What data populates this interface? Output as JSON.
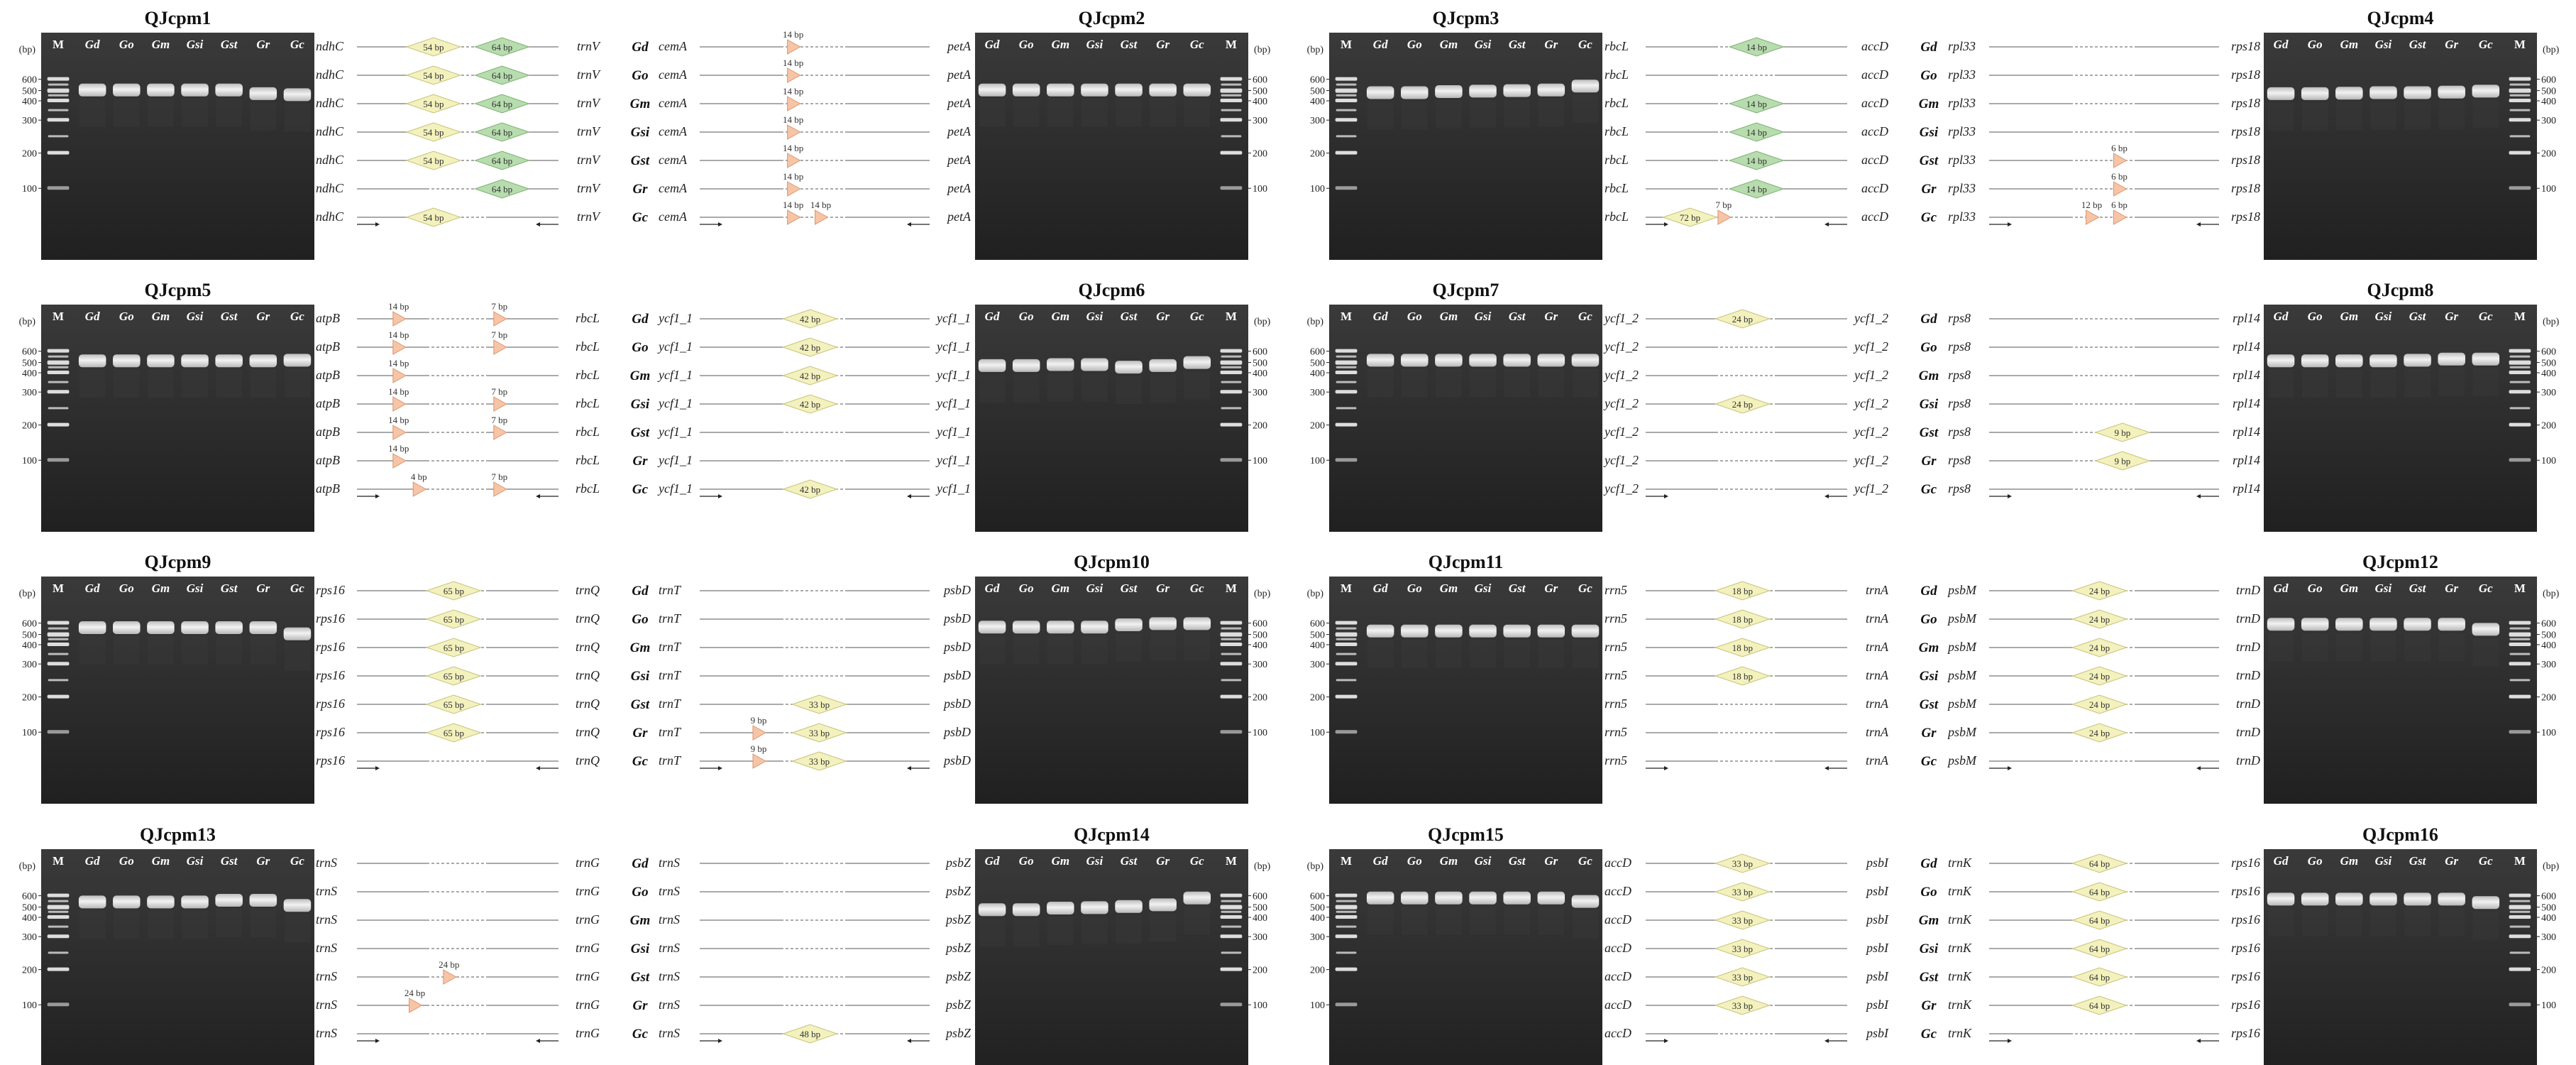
{
  "figure": {
    "size_unit": "(bp)",
    "ladder_label": "M",
    "ladder_values": [
      "600",
      "500",
      "400",
      "300",
      "200",
      "100"
    ],
    "lane_labels": [
      "Gd",
      "Go",
      "Gm",
      "Gsi",
      "Gst",
      "Gr",
      "Gc"
    ],
    "species": [
      "Gd",
      "Go",
      "Gm",
      "Gsi",
      "Gst",
      "Gr",
      "Gc"
    ]
  },
  "panels": [
    {
      "title": "QJcpm1",
      "marker": {
        "left": "ndhC",
        "right": "trnV",
        "features": [
          {
            "type": "diamond",
            "label": "54 bp",
            "color": "yellow",
            "pos": 0.38,
            "present": [
              1,
              1,
              1,
              1,
              1,
              0,
              1
            ]
          },
          {
            "type": "diamond",
            "label": "64 bp",
            "color": "green",
            "pos": 0.72,
            "present": [
              1,
              1,
              1,
              1,
              1,
              1,
              0
            ]
          }
        ]
      }
    },
    {
      "title": "QJcpm2",
      "marker": {
        "left": "cemA",
        "right": "petA",
        "features": [
          {
            "type": "triangle",
            "label": "14 bp",
            "color": "peach",
            "pos": 0.4,
            "present": [
              1,
              1,
              1,
              1,
              1,
              1,
              1
            ]
          },
          {
            "type": "triangle",
            "label": "14 bp",
            "color": "peach",
            "pos": 0.52,
            "present": [
              0,
              0,
              0,
              0,
              0,
              0,
              1
            ]
          }
        ]
      }
    },
    {
      "title": "QJcpm3",
      "marker": {
        "left": "rbcL",
        "right": "accD",
        "features": [
          {
            "type": "diamond",
            "label": "72 bp",
            "color": "yellow",
            "pos": 0.22,
            "present": [
              0,
              0,
              0,
              0,
              0,
              0,
              1
            ]
          },
          {
            "type": "triangle",
            "label": "7 bp",
            "color": "peach",
            "pos": 0.38,
            "present": [
              0,
              0,
              0,
              0,
              0,
              0,
              1
            ]
          },
          {
            "type": "diamond",
            "label": "14 bp",
            "color": "green",
            "pos": 0.55,
            "present": [
              1,
              0,
              1,
              1,
              1,
              1,
              0
            ]
          }
        ]
      }
    },
    {
      "title": "QJcpm4",
      "marker": {
        "left": "rpl33",
        "right": "rps18",
        "features": [
          {
            "type": "triangle",
            "label": "12 bp",
            "color": "peach",
            "pos": 0.44,
            "present": [
              0,
              0,
              0,
              0,
              0,
              0,
              1
            ]
          },
          {
            "type": "triangle",
            "label": "6 bp",
            "color": "peach",
            "pos": 0.56,
            "present": [
              0,
              0,
              0,
              0,
              1,
              1,
              1
            ]
          }
        ]
      }
    },
    {
      "title": "QJcpm5",
      "marker": {
        "left": "atpB",
        "right": "rbcL",
        "features": [
          {
            "type": "triangle",
            "label": "14 bp",
            "color": "peach",
            "pos": 0.2,
            "present": [
              1,
              1,
              1,
              1,
              1,
              1,
              0
            ]
          },
          {
            "type": "triangle",
            "label": "4 bp",
            "color": "peach",
            "pos": 0.3,
            "present": [
              0,
              0,
              0,
              0,
              0,
              0,
              1
            ]
          },
          {
            "type": "triangle",
            "label": "7 bp",
            "color": "peach",
            "pos": 0.7,
            "present": [
              1,
              1,
              0,
              1,
              1,
              0,
              1
            ]
          }
        ]
      }
    },
    {
      "title": "QJcpm6",
      "marker": {
        "left": "ycf1_1",
        "right": "ycf1_1",
        "features": [
          {
            "type": "diamond",
            "label": "42 bp",
            "color": "yellow",
            "pos": 0.48,
            "present": [
              1,
              1,
              1,
              1,
              0,
              0,
              1
            ]
          }
        ]
      }
    },
    {
      "title": "QJcpm7",
      "marker": {
        "left": "ycf1_2",
        "right": "ycf1_2",
        "features": [
          {
            "type": "diamond",
            "label": "24 bp",
            "color": "yellow",
            "pos": 0.48,
            "present": [
              1,
              0,
              0,
              1,
              0,
              0,
              0
            ]
          }
        ]
      }
    },
    {
      "title": "QJcpm8",
      "marker": {
        "left": "rps8",
        "right": "rpl14",
        "features": [
          {
            "type": "diamond",
            "label": "9 bp",
            "color": "yellow",
            "pos": 0.58,
            "present": [
              0,
              0,
              0,
              0,
              1,
              1,
              0
            ]
          }
        ]
      }
    },
    {
      "title": "QJcpm9",
      "marker": {
        "left": "rps16",
        "right": "trnQ",
        "features": [
          {
            "type": "diamond",
            "label": "65 bp",
            "color": "yellow",
            "pos": 0.48,
            "present": [
              1,
              1,
              1,
              1,
              1,
              1,
              0
            ]
          }
        ]
      }
    },
    {
      "title": "QJcpm10",
      "marker": {
        "left": "trnT",
        "right": "psbD",
        "features": [
          {
            "type": "triangle",
            "label": "9 bp",
            "color": "peach",
            "pos": 0.25,
            "present": [
              0,
              0,
              0,
              0,
              0,
              1,
              1
            ]
          },
          {
            "type": "diamond",
            "label": "33 bp",
            "color": "yellow",
            "pos": 0.52,
            "present": [
              0,
              0,
              0,
              0,
              1,
              1,
              1
            ]
          }
        ]
      }
    },
    {
      "title": "QJcpm11",
      "marker": {
        "left": "rrn5",
        "right": "trnA",
        "features": [
          {
            "type": "diamond",
            "label": "18 bp",
            "color": "yellow",
            "pos": 0.48,
            "present": [
              1,
              1,
              1,
              1,
              0,
              0,
              0
            ]
          }
        ]
      }
    },
    {
      "title": "QJcpm12",
      "marker": {
        "left": "psbM",
        "right": "trnD",
        "features": [
          {
            "type": "diamond",
            "label": "24 bp",
            "color": "yellow",
            "pos": 0.48,
            "present": [
              1,
              1,
              1,
              1,
              1,
              1,
              0
            ]
          }
        ]
      }
    },
    {
      "title": "QJcpm13",
      "marker": {
        "left": "trnS",
        "right": "trnG",
        "features": [
          {
            "type": "triangle",
            "label": "24 bp",
            "color": "peach",
            "pos": 0.45,
            "present": [
              0,
              0,
              0,
              0,
              1,
              0,
              0
            ]
          },
          {
            "type": "triangle",
            "label": "24 bp",
            "color": "peach",
            "pos": 0.28,
            "present": [
              0,
              0,
              0,
              0,
              0,
              1,
              0
            ]
          }
        ]
      }
    },
    {
      "title": "QJcpm14",
      "marker": {
        "left": "trnS",
        "right": "psbZ",
        "features": [
          {
            "type": "diamond",
            "label": "48 bp",
            "color": "yellow",
            "pos": 0.48,
            "present": [
              0,
              0,
              0,
              0,
              0,
              0,
              1
            ]
          }
        ]
      }
    },
    {
      "title": "QJcpm15",
      "marker": {
        "left": "accD",
        "right": "psbI",
        "features": [
          {
            "type": "diamond",
            "label": "33 bp",
            "color": "yellow",
            "pos": 0.48,
            "present": [
              1,
              1,
              1,
              1,
              1,
              1,
              0
            ]
          }
        ]
      }
    },
    {
      "title": "QJcpm16",
      "marker": {
        "left": "trnK",
        "right": "rps16",
        "features": [
          {
            "type": "diamond",
            "label": "64 bp",
            "color": "yellow",
            "pos": 0.48,
            "present": [
              1,
              1,
              1,
              1,
              1,
              1,
              0
            ]
          }
        ]
      }
    }
  ],
  "colors": {
    "gel_bg": "#2a2a2a",
    "band": "#f2f2f2",
    "yellow": "#f3f1bd",
    "yellow_stroke": "#c8c27a",
    "green": "#b7dcae",
    "green_stroke": "#7fb073",
    "peach": "#f7c4a6",
    "peach_stroke": "#d89772",
    "line": "#777777"
  }
}
